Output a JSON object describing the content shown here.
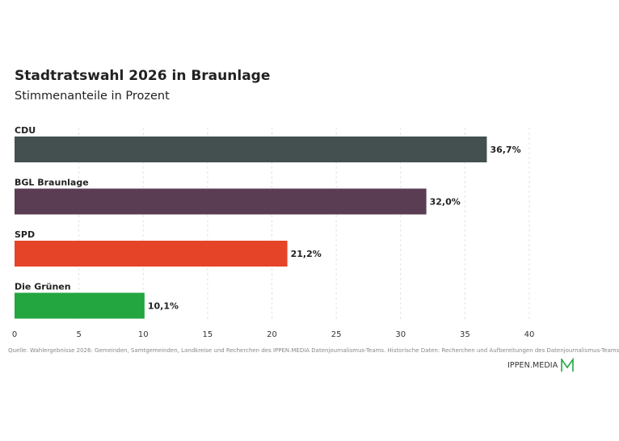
{
  "chart_data": {
    "type": "bar",
    "orientation": "horizontal",
    "title": "Stadtratswahl 2026 in Braunlage",
    "subtitle": "Stimmenanteile in Prozent",
    "categories": [
      "CDU",
      "BGL Braunlage",
      "SPD",
      "Die Grünen"
    ],
    "values": [
      36.7,
      32.0,
      21.2,
      10.1
    ],
    "value_labels": [
      "36,7%",
      "32,0%",
      "21,2%",
      "10,1%"
    ],
    "colors": [
      "#445050",
      "#5a3d52",
      "#e64429",
      "#23a640"
    ],
    "xlim": [
      0,
      40
    ],
    "xticks": [
      0,
      5,
      10,
      15,
      20,
      25,
      30,
      35,
      40
    ],
    "grid": true,
    "xlabel": "",
    "ylabel": ""
  },
  "footer": {
    "source": "Quelle: Wahlergebnisse 2026: Gemeinden, Samtgemeinden, Landkreise und Recherchen des IPPEN.MEDIA Datenjournalismus-Teams. Historische Daten: Recherchen und Aufbereitungen des Datenjournalismus-Teams",
    "brand": "IPPEN.MEDIA",
    "brand_color": "#23a640"
  }
}
